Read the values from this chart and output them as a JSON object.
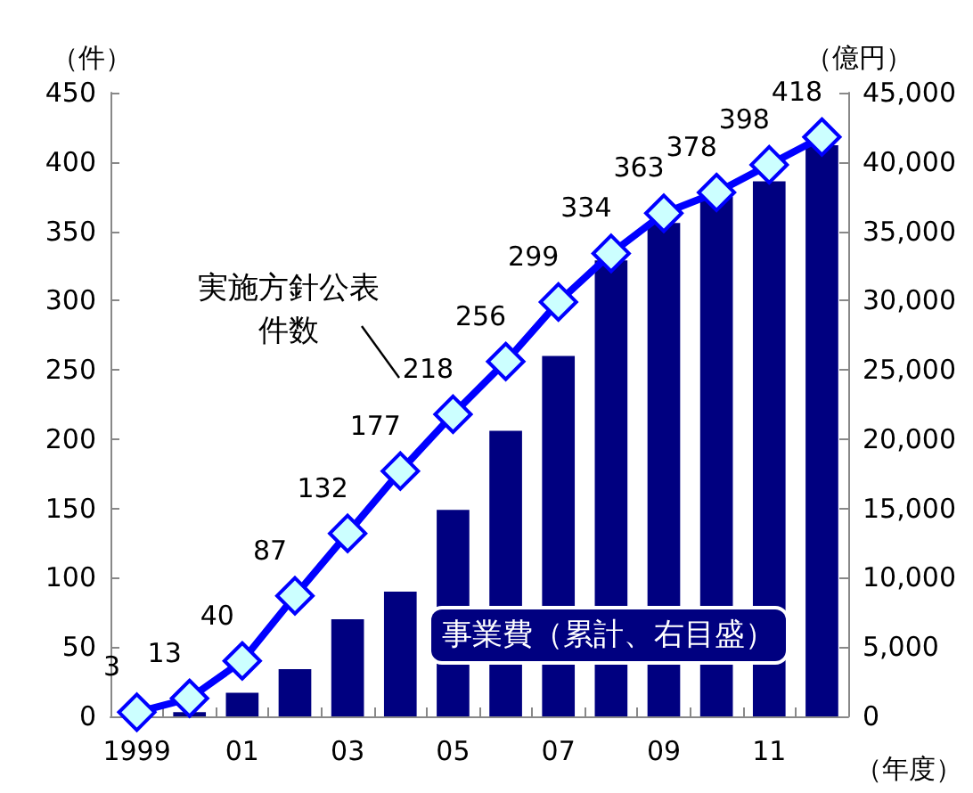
{
  "chart_data": {
    "type": "bar",
    "xlabel": "（年度）",
    "ylabel": "（件）",
    "y2label": "（億円）",
    "categories": [
      "1999",
      null,
      "01",
      null,
      "03",
      null,
      "05",
      null,
      "07",
      null,
      "09",
      null,
      "11",
      null
    ],
    "series": [
      {
        "name": "事業費（累計、右目盛）",
        "axis": "y2",
        "color": "#000080",
        "values": [
          0,
          300,
          1700,
          3400,
          7000,
          9000,
          14900,
          20600,
          26000,
          32900,
          35600,
          37500,
          38600,
          41200
        ]
      },
      {
        "name": "実施方針公表件数",
        "type": "line",
        "color": "#0000ff",
        "marker": "diamond",
        "values": [
          3,
          13,
          40,
          87,
          132,
          177,
          218,
          256,
          299,
          334,
          363,
          378,
          398,
          418
        ],
        "value_labels": [
          "3",
          "13",
          "40",
          "87",
          "132",
          "177",
          "218",
          "256",
          "299",
          "334",
          "363",
          "378",
          "398",
          "418"
        ]
      }
    ],
    "ylim": [
      0,
      450
    ],
    "yticks": [
      0,
      50,
      100,
      150,
      200,
      250,
      300,
      350,
      400,
      450
    ],
    "y2lim": [
      0,
      45000
    ],
    "y2ticks": [
      {
        "value": 0,
        "label": "0"
      },
      {
        "value": 5000,
        "label": "5,000"
      },
      {
        "value": 10000,
        "label": "10,000"
      },
      {
        "value": 15000,
        "label": "15,000"
      },
      {
        "value": 20000,
        "label": "20,000"
      },
      {
        "value": 25000,
        "label": "25,000"
      },
      {
        "value": 30000,
        "label": "30,000"
      },
      {
        "value": 35000,
        "label": "35,000"
      },
      {
        "value": 40000,
        "label": "40,000"
      },
      {
        "value": 45000,
        "label": "45,000"
      }
    ],
    "grid": false,
    "legend": false
  }
}
